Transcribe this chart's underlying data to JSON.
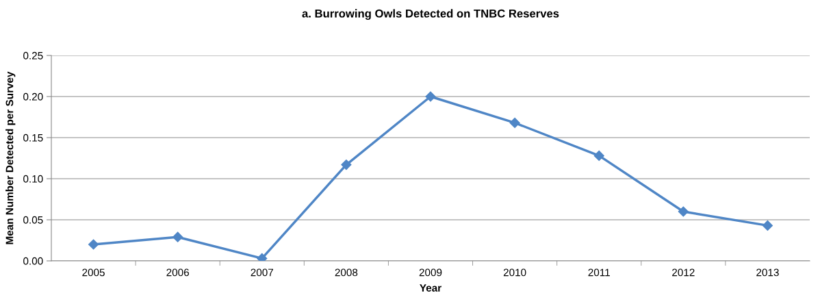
{
  "chart_data": {
    "type": "line",
    "title": "a. Burrowing Owls Detected on TNBC Reserves",
    "xlabel": "Year",
    "ylabel": "Mean Number Detected per Survey",
    "categories": [
      "2005",
      "2006",
      "2007",
      "2008",
      "2009",
      "2010",
      "2011",
      "2012",
      "2013"
    ],
    "series": [
      {
        "color": "#4f86c6",
        "values": [
          0.02,
          0.029,
          0.003,
          0.117,
          0.2,
          0.168,
          0.128,
          0.06,
          0.043
        ]
      }
    ],
    "ylim": [
      0,
      0.25
    ],
    "yticks": [
      {
        "value": 0,
        "label": "0.00"
      },
      {
        "value": 0.05,
        "label": "0.05"
      },
      {
        "value": 0.1,
        "label": "0.10"
      },
      {
        "value": 0.15,
        "label": "0.15"
      },
      {
        "value": 0.2,
        "label": "0.20"
      },
      {
        "value": 0.25,
        "label": "0.25"
      }
    ],
    "grid": "y",
    "marker": "diamond",
    "line_style": "solid"
  }
}
